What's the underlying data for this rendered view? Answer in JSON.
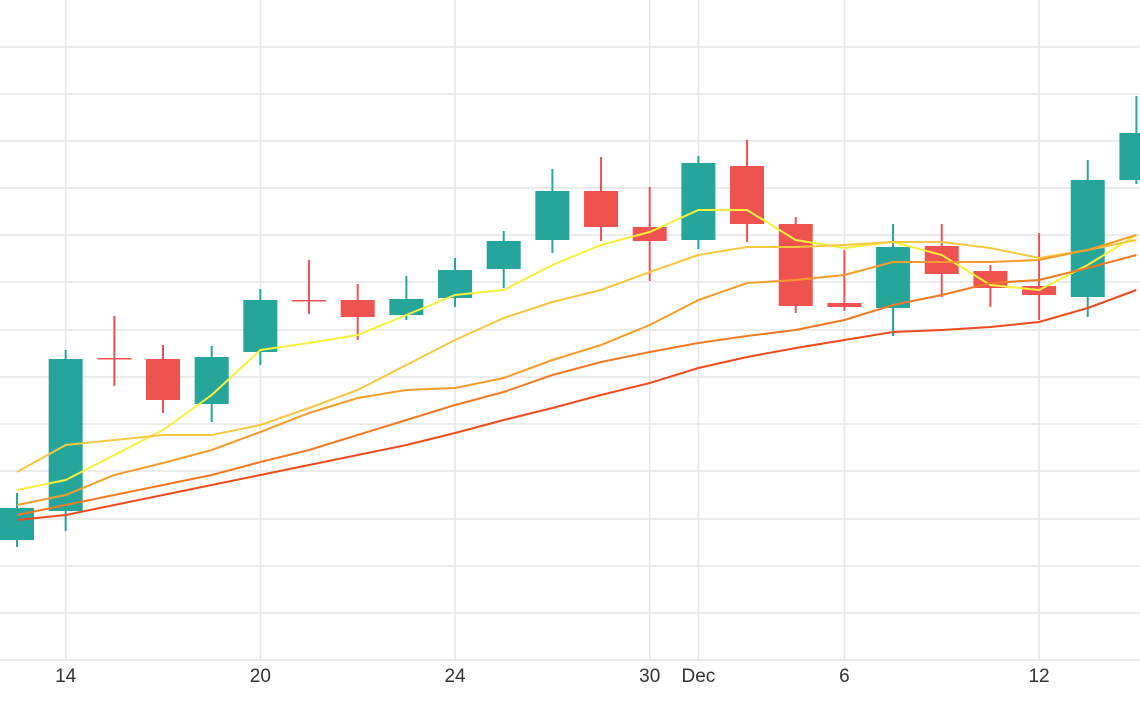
{
  "chart_data": {
    "type": "candlestick",
    "categories": [
      null,
      "14",
      null,
      null,
      null,
      "20",
      null,
      null,
      null,
      "24",
      null,
      null,
      null,
      "30",
      "Dec",
      null,
      null,
      "6",
      null,
      null,
      null,
      "12",
      null,
      null
    ],
    "open": [
      120,
      149,
      302,
      301,
      256,
      308,
      360,
      360,
      345,
      362,
      391,
      420,
      469,
      433,
      420,
      494,
      436,
      357,
      352,
      414,
      389,
      374,
      363,
      480
    ],
    "high": [
      167,
      310,
      344,
      315,
      314,
      371,
      400,
      376,
      384,
      402,
      429,
      491,
      503,
      473,
      504,
      520,
      443,
      410,
      436,
      436,
      395,
      427,
      500,
      564
    ],
    "low": [
      113,
      129,
      274,
      247,
      238,
      295,
      346,
      320,
      340,
      353,
      372,
      407,
      419,
      379,
      411,
      418,
      347,
      349,
      324,
      363,
      353,
      340,
      343,
      476
    ],
    "close": [
      152,
      301,
      302,
      260,
      303,
      360,
      360,
      343,
      361,
      390,
      419,
      469,
      433,
      419,
      497,
      436,
      354,
      353,
      413,
      386,
      372,
      365,
      480,
      527
    ],
    "up_color": "#26a69a",
    "down_color": "#ef5350",
    "series": [
      {
        "color": "#f7f03c",
        "values": [
          170,
          180,
          205,
          230,
          265,
          310,
          317,
          325,
          345,
          365,
          370,
          395,
          415,
          428,
          450,
          450,
          420,
          412,
          418,
          405,
          375,
          370,
          395,
          425
        ]
      },
      {
        "color": "#f5c842",
        "values": [
          188,
          215,
          220,
          225,
          225,
          235,
          252,
          270,
          295,
          320,
          342,
          358,
          370,
          388,
          405,
          413,
          413,
          415,
          418,
          418,
          412,
          402,
          410,
          420
        ]
      },
      {
        "color": "#f59d2c",
        "values": [
          155,
          165,
          185,
          197,
          210,
          228,
          247,
          262,
          270,
          272,
          282,
          300,
          315,
          335,
          360,
          377,
          380,
          385,
          398,
          398,
          398,
          400,
          410,
          425
        ]
      },
      {
        "color": "#f37a24",
        "values": [
          145,
          155,
          165,
          175,
          185,
          198,
          210,
          225,
          240,
          255,
          268,
          285,
          298,
          308,
          317,
          324,
          330,
          340,
          355,
          365,
          377,
          380,
          392,
          405
        ]
      },
      {
        "color": "#ee4b1f",
        "values": [
          140,
          145,
          155,
          165,
          175,
          185,
          195,
          205,
          215,
          227,
          240,
          252,
          265,
          277,
          292,
          303,
          312,
          320,
          328,
          330,
          333,
          338,
          352,
          370
        ]
      }
    ],
    "ylim": [
      0,
      660
    ],
    "yticks": [
      0,
      47,
      94,
      141,
      189,
      236,
      283,
      330,
      378,
      425,
      472,
      519,
      566,
      613
    ],
    "grid": true
  }
}
